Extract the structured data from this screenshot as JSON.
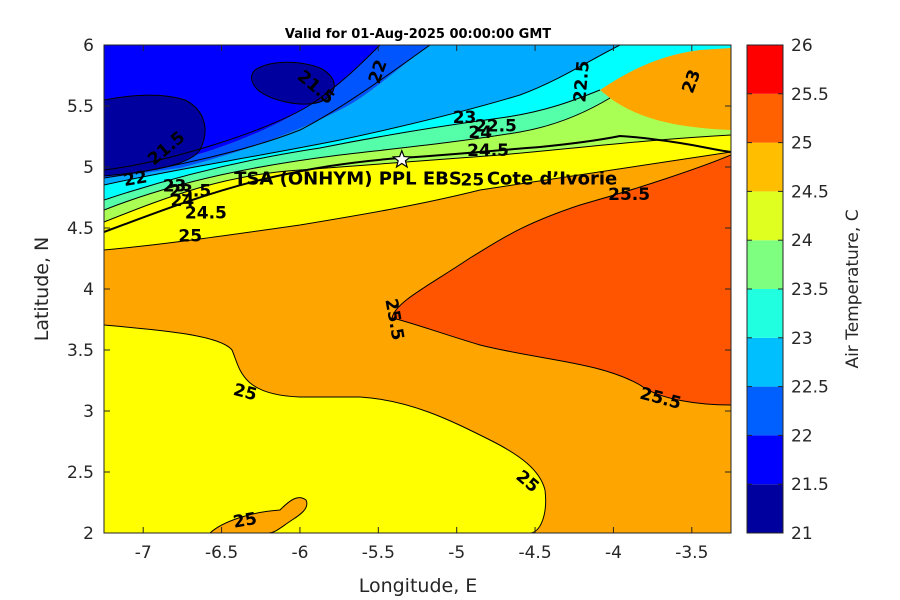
{
  "chart_data": {
    "type": "heatmap",
    "title": "Valid for 01-Aug-2025 00:00:00 GMT",
    "xlabel": "Longitude, E",
    "ylabel": "Latitude, N",
    "xlim": [
      -7.25,
      -3.25
    ],
    "ylim": [
      2,
      6
    ],
    "x_ticks": [
      -7,
      -6.5,
      -6,
      -5.5,
      -5,
      -4.5,
      -4,
      -3.5
    ],
    "x_tick_labels": [
      "-7",
      "-6.5",
      "-6",
      "-5.5",
      "-5",
      "-4.5",
      "-4",
      "-3.5"
    ],
    "y_ticks": [
      2,
      2.5,
      3,
      3.5,
      4,
      4.5,
      5,
      5.5,
      6
    ],
    "y_tick_labels": [
      "2",
      "2.5",
      "3",
      "3.5",
      "4",
      "4.5",
      "5",
      "5.5",
      "6"
    ],
    "colorbar": {
      "label": "Air Temperature, C",
      "levels": [
        21,
        21.5,
        22,
        22.5,
        23,
        23.5,
        24,
        24.5,
        25,
        25.5,
        26
      ],
      "tick_labels": [
        "21",
        "21.5",
        "22",
        "22.5",
        "23",
        "23.5",
        "24",
        "24.5",
        "25",
        "25.5",
        "26"
      ],
      "colors": [
        "#00009f",
        "#0000ff",
        "#0060ff",
        "#00bfff",
        "#20ffdf",
        "#7fff7f",
        "#dfff20",
        "#ffbf00",
        "#ff6000",
        "#ff0000"
      ]
    },
    "contour_labels": [
      {
        "text": "21.5",
        "lon": -5.9,
        "lat": 5.65,
        "angle": 40
      },
      {
        "text": "22",
        "lon": -5.5,
        "lat": 5.78,
        "angle": -70
      },
      {
        "text": "21.5",
        "lon": -6.85,
        "lat": 5.15,
        "angle": -40
      },
      {
        "text": "22",
        "lon": -7.05,
        "lat": 4.9,
        "angle": -10
      },
      {
        "text": "22.5",
        "lon": -4.2,
        "lat": 5.7,
        "angle": -85
      },
      {
        "text": "23",
        "lon": -3.5,
        "lat": 5.7,
        "angle": -70
      },
      {
        "text": "23",
        "lon": -4.95,
        "lat": 5.4,
        "angle": 0
      },
      {
        "text": "22.5",
        "lon": -4.75,
        "lat": 5.33,
        "angle": 0
      },
      {
        "text": "24",
        "lon": -4.85,
        "lat": 5.28,
        "angle": 0
      },
      {
        "text": "24.5",
        "lon": -4.8,
        "lat": 5.13,
        "angle": 0
      },
      {
        "text": "23",
        "lon": -6.8,
        "lat": 4.84,
        "angle": 0
      },
      {
        "text": "23.5",
        "lon": -6.7,
        "lat": 4.8,
        "angle": 0
      },
      {
        "text": "24",
        "lon": -6.75,
        "lat": 4.72,
        "angle": 0
      },
      {
        "text": "24.5",
        "lon": -6.6,
        "lat": 4.62,
        "angle": 0
      },
      {
        "text": "25",
        "lon": -6.7,
        "lat": 4.43,
        "angle": 0
      },
      {
        "text": "25",
        "lon": -4.9,
        "lat": 4.89,
        "angle": 0
      },
      {
        "text": "25.5",
        "lon": -3.9,
        "lat": 4.77,
        "angle": 0
      },
      {
        "text": "25.5",
        "lon": -5.4,
        "lat": 3.75,
        "angle": 80
      },
      {
        "text": "25",
        "lon": -6.35,
        "lat": 3.15,
        "angle": 15
      },
      {
        "text": "25.5",
        "lon": -3.7,
        "lat": 3.1,
        "angle": 15
      },
      {
        "text": "25",
        "lon": -4.55,
        "lat": 2.42,
        "angle": 40
      },
      {
        "text": "25",
        "lon": -6.35,
        "lat": 2.1,
        "angle": -10
      }
    ],
    "site": {
      "name": "TSA (ONHYM) PPL EBS",
      "country": "Cote d’Ivorie",
      "lon": -5.35,
      "lat": 5.06
    }
  }
}
